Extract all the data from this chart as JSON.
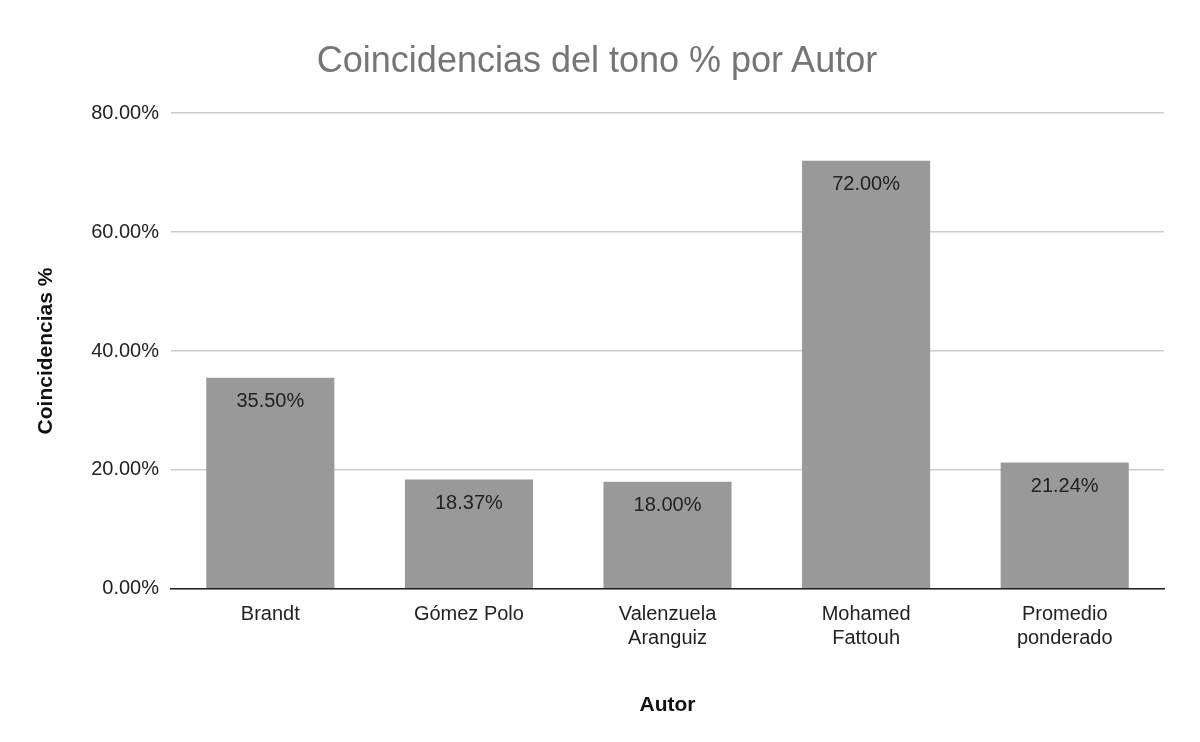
{
  "chart_data": {
    "type": "bar",
    "title": "Coincidencias del tono % por Autor",
    "xlabel": "Autor",
    "ylabel": "Coincidencias %",
    "categories": [
      "Brandt",
      "Gómez Polo",
      "Valenzuela Aranguiz",
      "Mohamed Fattouh",
      "Promedio ponderado"
    ],
    "values": [
      35.5,
      18.37,
      18,
      72,
      21.24
    ],
    "color": "#999999",
    "value_labels": [
      "35.50%",
      "18.37%",
      "18.00%",
      "72.00%",
      "21.24%"
    ],
    "ylim": [
      0,
      80
    ],
    "yticks": [
      {
        "value": 0,
        "label": "0.00%"
      },
      {
        "value": 20,
        "label": "20.00%"
      },
      {
        "value": 40,
        "label": "40.00%"
      },
      {
        "value": 60,
        "label": "60.00%"
      },
      {
        "value": 80,
        "label": "80.00%"
      }
    ],
    "grid": "y",
    "legend": false
  }
}
